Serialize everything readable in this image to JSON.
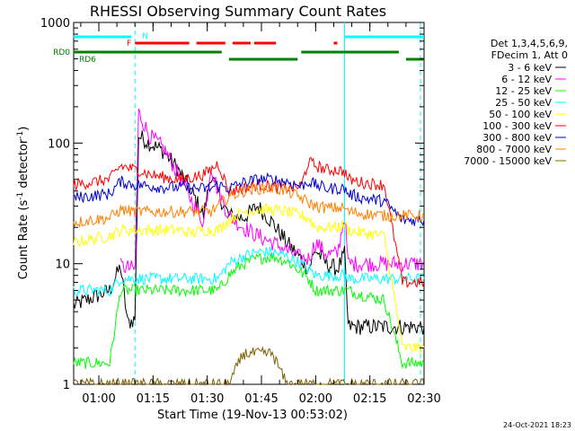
{
  "chart_data": {
    "type": "line",
    "title": "RHESSI Observing Summary Count Rates",
    "ylabel_main": "Count Rate (s",
    "ylabel_sup1": "-1",
    "ylabel_mid": " detector",
    "ylabel_sup2": "-1",
    "ylabel_end": ")",
    "xlabel": "Start Time (19-Nov-13 00:53:02)",
    "timestamp": "24-Oct-2021 18:23",
    "y_scale": "log",
    "ylim": [
      1,
      1000
    ],
    "xlim": [
      "00:53:02",
      "02:30"
    ],
    "grid": false,
    "legend_position": "right",
    "y_ticks": [
      {
        "value": 1,
        "label": "1"
      },
      {
        "value": 10,
        "label": "10"
      },
      {
        "value": 100,
        "label": "100"
      },
      {
        "value": 1000,
        "label": "1000"
      }
    ],
    "x_ticks": [
      {
        "value": 60,
        "label": "01:00"
      },
      {
        "value": 75,
        "label": "01:15"
      },
      {
        "value": 90,
        "label": "01:30"
      },
      {
        "value": 105,
        "label": "01:45"
      },
      {
        "value": 120,
        "label": "02:00"
      },
      {
        "value": 135,
        "label": "02:15"
      },
      {
        "value": 150,
        "label": "02:30"
      }
    ],
    "legend_header": [
      "Det 1,3,4,5,6,9,",
      "FDecim 1, Att 0"
    ],
    "state_labels": {
      "night": "N",
      "flare": "F",
      "rd0": "RD0",
      "rd6": "RD6"
    },
    "series": [
      {
        "name": "3 - 6 keV",
        "color": "#000000",
        "values": [
          [
            53,
            4.5
          ],
          [
            63,
            6.0
          ],
          [
            66,
            9.5
          ],
          [
            68,
            3.2
          ],
          [
            70,
            3.5
          ],
          [
            71,
            115
          ],
          [
            74,
            100
          ],
          [
            78,
            85
          ],
          [
            82,
            60
          ],
          [
            86,
            38
          ],
          [
            89,
            25
          ],
          [
            91,
            55
          ],
          [
            93,
            38
          ],
          [
            96,
            25
          ],
          [
            100,
            24
          ],
          [
            104,
            30
          ],
          [
            108,
            22
          ],
          [
            112,
            15
          ],
          [
            116,
            11
          ],
          [
            118,
            9
          ],
          [
            120,
            13
          ],
          [
            123,
            10
          ],
          [
            126,
            9
          ],
          [
            128,
            12
          ],
          [
            129,
            3.0
          ],
          [
            133,
            3.0
          ],
          [
            139,
            3.0
          ],
          [
            149,
            3.0
          ],
          [
            150,
            3.0
          ]
        ]
      },
      {
        "name": "6 - 12 keV",
        "color": "#ff00ff",
        "values": [
          [
            66,
            9.5
          ],
          [
            70,
            9.0
          ],
          [
            71,
            180
          ],
          [
            74,
            115
          ],
          [
            78,
            90
          ],
          [
            82,
            55
          ],
          [
            86,
            32
          ],
          [
            89,
            22
          ],
          [
            91,
            65
          ],
          [
            93,
            40
          ],
          [
            96,
            25
          ],
          [
            100,
            20
          ],
          [
            104,
            17
          ],
          [
            108,
            15
          ],
          [
            112,
            13
          ],
          [
            116,
            11
          ],
          [
            118,
            11
          ],
          [
            120,
            15
          ],
          [
            123,
            12
          ],
          [
            126,
            12
          ],
          [
            128,
            25
          ],
          [
            129,
            10
          ],
          [
            133,
            10
          ],
          [
            139,
            10
          ],
          [
            149,
            10
          ],
          [
            150,
            10
          ]
        ]
      },
      {
        "name": "12 - 25 keV",
        "color": "#00ff00",
        "values": [
          [
            53,
            1.5
          ],
          [
            63,
            1.5
          ],
          [
            66,
            6.0
          ],
          [
            70,
            6.0
          ],
          [
            71,
            6.0
          ],
          [
            74,
            6.0
          ],
          [
            78,
            6.0
          ],
          [
            82,
            6.0
          ],
          [
            86,
            6.0
          ],
          [
            89,
            6.0
          ],
          [
            91,
            6.0
          ],
          [
            93,
            6.0
          ],
          [
            96,
            8.0
          ],
          [
            100,
            10
          ],
          [
            104,
            11
          ],
          [
            108,
            11.5
          ],
          [
            112,
            10.5
          ],
          [
            116,
            8.5
          ],
          [
            118,
            7.5
          ],
          [
            120,
            6.0
          ],
          [
            123,
            6.0
          ],
          [
            126,
            6.0
          ],
          [
            128,
            6.0
          ],
          [
            129,
            6.0
          ],
          [
            133,
            5.5
          ],
          [
            139,
            5.0
          ],
          [
            144,
            1.5
          ],
          [
            149,
            1.5
          ],
          [
            150,
            1.5
          ]
        ]
      },
      {
        "name": "25 - 50 keV",
        "color": "#00ffff",
        "values": [
          [
            53,
            6.0
          ],
          [
            63,
            6.0
          ],
          [
            66,
            7.5
          ],
          [
            70,
            7.5
          ],
          [
            71,
            7.5
          ],
          [
            74,
            7.5
          ],
          [
            78,
            7.5
          ],
          [
            82,
            7.5
          ],
          [
            86,
            7.5
          ],
          [
            89,
            7.5
          ],
          [
            91,
            7.5
          ],
          [
            93,
            7.5
          ],
          [
            96,
            10
          ],
          [
            100,
            11.5
          ],
          [
            104,
            12.5
          ],
          [
            108,
            12.5
          ],
          [
            112,
            11.5
          ],
          [
            116,
            10
          ],
          [
            118,
            9.0
          ],
          [
            120,
            8.0
          ],
          [
            123,
            8.0
          ],
          [
            126,
            8.0
          ],
          [
            128,
            8.0
          ],
          [
            129,
            7.5
          ],
          [
            133,
            7.5
          ],
          [
            139,
            7.5
          ],
          [
            149,
            7.5
          ],
          [
            150,
            7.5
          ]
        ]
      },
      {
        "name": "50 - 100 keV",
        "color": "#ffff00",
        "values": [
          [
            53,
            15
          ],
          [
            63,
            17
          ],
          [
            66,
            19
          ],
          [
            70,
            19
          ],
          [
            71,
            19
          ],
          [
            74,
            19
          ],
          [
            78,
            19
          ],
          [
            82,
            19
          ],
          [
            86,
            18
          ],
          [
            89,
            19
          ],
          [
            91,
            19
          ],
          [
            93,
            19
          ],
          [
            96,
            23
          ],
          [
            100,
            27
          ],
          [
            104,
            28
          ],
          [
            108,
            28
          ],
          [
            112,
            27
          ],
          [
            116,
            25
          ],
          [
            118,
            24
          ],
          [
            120,
            20
          ],
          [
            123,
            20
          ],
          [
            126,
            20
          ],
          [
            128,
            21
          ],
          [
            129,
            19
          ],
          [
            133,
            18
          ],
          [
            139,
            17
          ],
          [
            144,
            2.0
          ],
          [
            149,
            2.0
          ],
          [
            150,
            2.0
          ]
        ]
      },
      {
        "name": "100 - 300 keV",
        "color": "#ff0000",
        "values": [
          [
            53,
            45
          ],
          [
            63,
            50
          ],
          [
            66,
            65
          ],
          [
            70,
            60
          ],
          [
            71,
            60
          ],
          [
            74,
            55
          ],
          [
            78,
            52
          ],
          [
            82,
            50
          ],
          [
            86,
            52
          ],
          [
            89,
            55
          ],
          [
            91,
            60
          ],
          [
            93,
            68
          ],
          [
            96,
            40
          ],
          [
            100,
            42
          ],
          [
            104,
            45
          ],
          [
            108,
            44
          ],
          [
            112,
            42
          ],
          [
            116,
            44
          ],
          [
            118,
            70
          ],
          [
            120,
            65
          ],
          [
            123,
            60
          ],
          [
            126,
            60
          ],
          [
            128,
            58
          ],
          [
            129,
            50
          ],
          [
            133,
            47
          ],
          [
            139,
            45
          ],
          [
            144,
            7.0
          ],
          [
            149,
            7.0
          ],
          [
            150,
            7.0
          ]
        ]
      },
      {
        "name": "300 - 800 keV",
        "color": "#0000cc",
        "values": [
          [
            53,
            35
          ],
          [
            63,
            38
          ],
          [
            66,
            48
          ],
          [
            70,
            45
          ],
          [
            71,
            45
          ],
          [
            74,
            44
          ],
          [
            78,
            43
          ],
          [
            82,
            43
          ],
          [
            86,
            42
          ],
          [
            89,
            42
          ],
          [
            91,
            42
          ],
          [
            93,
            45
          ],
          [
            96,
            42
          ],
          [
            100,
            47
          ],
          [
            104,
            50
          ],
          [
            108,
            50
          ],
          [
            112,
            48
          ],
          [
            116,
            44
          ],
          [
            118,
            48
          ],
          [
            120,
            45
          ],
          [
            123,
            42
          ],
          [
            126,
            42
          ],
          [
            128,
            42
          ],
          [
            129,
            38
          ],
          [
            133,
            35
          ],
          [
            139,
            33
          ],
          [
            144,
            23
          ],
          [
            149,
            23
          ],
          [
            150,
            23
          ]
        ]
      },
      {
        "name": "800 - 7000 keV",
        "color": "#ff8000",
        "values": [
          [
            53,
            22
          ],
          [
            63,
            24
          ],
          [
            66,
            28
          ],
          [
            70,
            27
          ],
          [
            71,
            27
          ],
          [
            74,
            27
          ],
          [
            78,
            27
          ],
          [
            82,
            27
          ],
          [
            86,
            27
          ],
          [
            89,
            27
          ],
          [
            91,
            27
          ],
          [
            93,
            30
          ],
          [
            96,
            36
          ],
          [
            100,
            40
          ],
          [
            104,
            42
          ],
          [
            108,
            42
          ],
          [
            112,
            40
          ],
          [
            116,
            35
          ],
          [
            118,
            32
          ],
          [
            120,
            30
          ],
          [
            123,
            29
          ],
          [
            126,
            29
          ],
          [
            128,
            29
          ],
          [
            129,
            27
          ],
          [
            133,
            26
          ],
          [
            139,
            25
          ],
          [
            144,
            25
          ],
          [
            149,
            25
          ],
          [
            150,
            25
          ]
        ]
      },
      {
        "name": "7000 - 15000 keV",
        "color": "#806000",
        "values": [
          [
            53,
            1.0
          ],
          [
            63,
            1.0
          ],
          [
            66,
            1.0
          ],
          [
            70,
            1.0
          ],
          [
            71,
            1.0
          ],
          [
            74,
            1.0
          ],
          [
            78,
            1.0
          ],
          [
            82,
            1.0
          ],
          [
            86,
            1.0
          ],
          [
            89,
            1.0
          ],
          [
            91,
            1.0
          ],
          [
            93,
            1.0
          ],
          [
            96,
            1.0
          ],
          [
            100,
            1.8
          ],
          [
            104,
            1.8
          ],
          [
            108,
            1.8
          ],
          [
            112,
            1.0
          ],
          [
            116,
            1.0
          ],
          [
            118,
            1.0
          ],
          [
            120,
            1.0
          ],
          [
            123,
            1.0
          ],
          [
            126,
            1.0
          ],
          [
            128,
            1.0
          ],
          [
            129,
            1.0
          ],
          [
            133,
            1.0
          ],
          [
            139,
            1.0
          ],
          [
            144,
            1.0
          ],
          [
            149,
            1.0
          ],
          [
            150,
            1.0
          ]
        ]
      }
    ],
    "night_bars": [
      [
        53,
        69
      ],
      [
        128,
        150
      ]
    ],
    "flare_bars": [
      [
        70,
        85
      ],
      [
        87,
        95
      ],
      [
        97,
        102
      ],
      [
        103,
        109
      ],
      [
        125,
        126
      ]
    ],
    "rd0_bars": [
      [
        53,
        94
      ],
      [
        116,
        143
      ]
    ],
    "rd6_bars": [
      [
        96,
        115
      ],
      [
        145,
        150
      ]
    ],
    "boundaries": [
      {
        "t": 70,
        "color": "#00ffff",
        "style": "dashed"
      },
      {
        "t": 128,
        "color": "#00ffff",
        "style": "solid"
      },
      {
        "t": 149,
        "color": "#00ffff",
        "style": "dashed"
      }
    ]
  }
}
